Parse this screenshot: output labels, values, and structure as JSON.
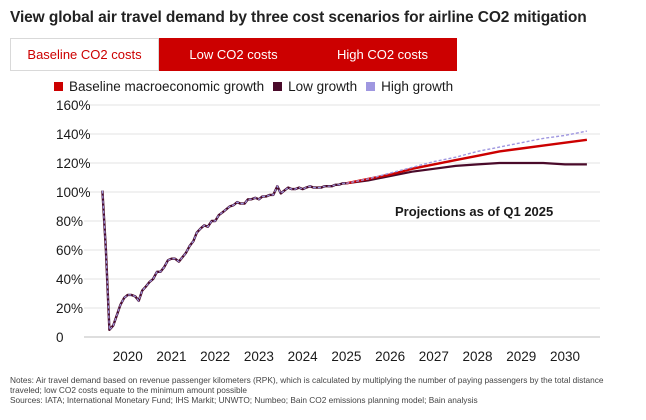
{
  "title": "View global air travel demand by three cost scenarios for airline CO2 mitigation",
  "tabs": [
    {
      "label": "Baseline CO2 costs",
      "active": true
    },
    {
      "label": "Low CO2 costs",
      "active": false
    },
    {
      "label": "High CO2 costs",
      "active": false
    }
  ],
  "colors": {
    "accent": "#cc0000",
    "baseline": "#cc0000",
    "low": "#4a0a2a",
    "high": "#9f97e0"
  },
  "chart_data": {
    "type": "line",
    "ylim": [
      0,
      160
    ],
    "yticks": [
      0,
      20,
      40,
      60,
      80,
      100,
      120,
      140,
      160
    ],
    "ytick_labels": [
      "0",
      "20%",
      "40%",
      "60%",
      "80%",
      "100%",
      "120%",
      "140%",
      "160%"
    ],
    "xlim": [
      2019.0,
      2030.8
    ],
    "xticks": [
      2020,
      2021,
      2022,
      2023,
      2024,
      2025,
      2026,
      2027,
      2028,
      2029,
      2030
    ],
    "xtick_labels": [
      "2020",
      "2021",
      "2022",
      "2023",
      "2024",
      "2025",
      "2026",
      "2027",
      "2028",
      "2029",
      "2030"
    ],
    "grid": true,
    "annotation": "Projections as of Q1 2025",
    "history": {
      "x": [
        2019.42,
        2019.5,
        2019.58,
        2019.67,
        2019.75,
        2019.83,
        2019.92,
        2020.0,
        2020.08,
        2020.17,
        2020.25,
        2020.33,
        2020.42,
        2020.5,
        2020.58,
        2020.67,
        2020.75,
        2020.83,
        2020.92,
        2021.0,
        2021.08,
        2021.17,
        2021.25,
        2021.33,
        2021.42,
        2021.5,
        2021.58,
        2021.67,
        2021.75,
        2021.83,
        2021.92,
        2022.0,
        2022.08,
        2022.17,
        2022.25,
        2022.33,
        2022.42,
        2022.5,
        2022.58,
        2022.67,
        2022.75,
        2022.83,
        2022.92,
        2023.0,
        2023.08,
        2023.17,
        2023.25,
        2023.33,
        2023.42,
        2023.5,
        2023.58,
        2023.67,
        2023.75,
        2023.83,
        2023.92,
        2024.0,
        2024.08,
        2024.17,
        2024.25,
        2024.33,
        2024.42,
        2024.5,
        2024.58,
        2024.67,
        2024.75,
        2024.83,
        2024.92,
        2025.0
      ],
      "y": [
        101,
        60,
        5,
        8,
        15,
        22,
        27,
        29,
        29,
        28,
        25,
        32,
        35,
        38,
        40,
        45,
        45,
        48,
        53,
        54,
        54,
        52,
        55,
        58,
        63,
        66,
        72,
        75,
        77,
        76,
        80,
        80,
        84,
        86,
        88,
        90,
        91,
        93,
        92,
        92,
        95,
        95,
        96,
        95,
        97,
        97,
        98,
        98,
        104,
        99,
        101,
        103,
        102,
        102,
        103,
        102,
        103,
        104,
        103,
        103,
        103,
        104,
        104,
        104,
        105,
        105,
        106,
        106
      ]
    },
    "series": [
      {
        "name": "Baseline macroeconomic growth",
        "x": [
          2025.0,
          2025.5,
          2026.0,
          2026.5,
          2027.0,
          2027.5,
          2028.0,
          2028.5,
          2029.0,
          2029.5,
          2030.0,
          2030.5
        ],
        "y": [
          106,
          109,
          112,
          116,
          119,
          122,
          125,
          128,
          130,
          132,
          134,
          136
        ]
      },
      {
        "name": "Low growth",
        "x": [
          2025.0,
          2025.5,
          2026.0,
          2026.5,
          2027.0,
          2027.5,
          2028.0,
          2028.5,
          2029.0,
          2029.5,
          2030.0,
          2030.5
        ],
        "y": [
          106,
          108,
          111,
          114,
          116,
          118,
          119,
          120,
          120,
          120,
          119,
          119
        ]
      },
      {
        "name": "High growth",
        "x": [
          2025.0,
          2025.5,
          2026.0,
          2026.5,
          2027.0,
          2027.5,
          2028.0,
          2028.5,
          2029.0,
          2029.5,
          2030.0,
          2030.5
        ],
        "y": [
          106,
          109,
          113,
          117,
          121,
          124,
          128,
          131,
          134,
          137,
          139,
          142
        ]
      }
    ]
  },
  "notes": {
    "line1": "Notes: Air travel demand based on revenue passenger kilometers (RPK), which is calculated by multiplying the number of paying passengers by the total distance traveled; low CO2 costs equate to the minimum amount possible",
    "line2": "Sources: IATA; International Monetary Fund; IHS Markit; UNWTO; Numbeo; Bain CO2 emissions planning model; Bain analysis"
  }
}
